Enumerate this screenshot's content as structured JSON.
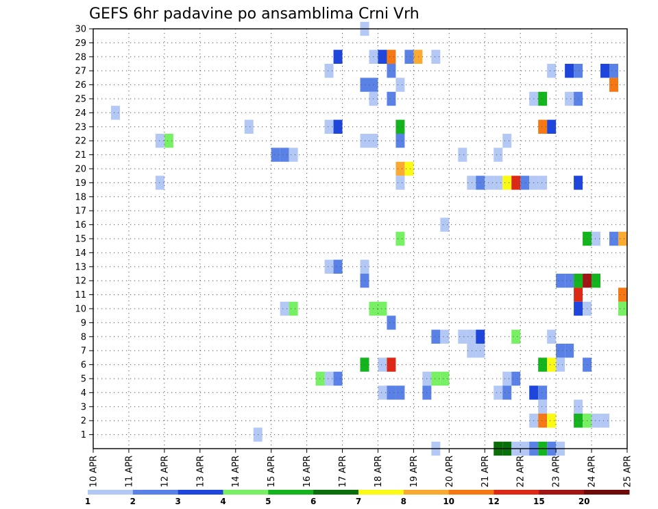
{
  "chart_data": {
    "type": "heatmap",
    "title": "GEFS 6hr padavine po ansamblima Crni Vrh",
    "xlabel": "",
    "ylabel": "",
    "x_tick_labels": [
      "10 APR",
      "11 APR",
      "12 APR",
      "13 APR",
      "14 APR",
      "15 APR",
      "16 APR",
      "17 APR",
      "18 APR",
      "19 APR",
      "20 APR",
      "21 APR",
      "22 APR",
      "23 APR",
      "24 APR",
      "25 APR"
    ],
    "y_tick_labels": [
      "1",
      "2",
      "3",
      "4",
      "5",
      "6",
      "7",
      "8",
      "9",
      "10",
      "11",
      "12",
      "13",
      "14",
      "15",
      "16",
      "17",
      "18",
      "19",
      "20",
      "21",
      "22",
      "23",
      "24",
      "25",
      "26",
      "27",
      "28",
      "29",
      "30"
    ],
    "xlim": [
      0,
      60
    ],
    "ylim": [
      0,
      30
    ],
    "x_unit": "6-hour step from 10 APR 00Z",
    "grid": true,
    "colorbar": {
      "labels": [
        "1",
        "2",
        "3",
        "4",
        "5",
        "6",
        "7",
        "8",
        "10",
        "12",
        "15",
        "20"
      ],
      "colors": [
        "#b4c8f5",
        "#5a82e6",
        "#1e46dc",
        "#78f064",
        "#14b41e",
        "#0a6e0a",
        "#fafa14",
        "#faaa32",
        "#f57814",
        "#dc2814",
        "#a01414",
        "#6e0a0a"
      ]
    },
    "cells": [
      {
        "x": 30.5,
        "y": 30,
        "v": 1
      },
      {
        "x": 27.5,
        "y": 28,
        "v": 3
      },
      {
        "x": 31.5,
        "y": 28,
        "v": 1
      },
      {
        "x": 32.5,
        "y": 28,
        "v": 3
      },
      {
        "x": 33.5,
        "y": 28,
        "v": 9
      },
      {
        "x": 35.5,
        "y": 28,
        "v": 2
      },
      {
        "x": 36.5,
        "y": 28,
        "v": 8
      },
      {
        "x": 38.5,
        "y": 28,
        "v": 1
      },
      {
        "x": 26.5,
        "y": 27,
        "v": 1
      },
      {
        "x": 33.5,
        "y": 27,
        "v": 2
      },
      {
        "x": 51.5,
        "y": 27,
        "v": 1
      },
      {
        "x": 53.5,
        "y": 27,
        "v": 3
      },
      {
        "x": 54.5,
        "y": 27,
        "v": 2
      },
      {
        "x": 57.5,
        "y": 27,
        "v": 3
      },
      {
        "x": 58.5,
        "y": 27,
        "v": 2
      },
      {
        "x": 30.5,
        "y": 26,
        "v": 2
      },
      {
        "x": 31.5,
        "y": 26,
        "v": 2
      },
      {
        "x": 34.5,
        "y": 26,
        "v": 1
      },
      {
        "x": 58.5,
        "y": 26,
        "v": 9
      },
      {
        "x": 31.5,
        "y": 25,
        "v": 1
      },
      {
        "x": 33.5,
        "y": 25,
        "v": 2
      },
      {
        "x": 49.5,
        "y": 25,
        "v": 1
      },
      {
        "x": 50.5,
        "y": 25,
        "v": 5
      },
      {
        "x": 53.5,
        "y": 25,
        "v": 1
      },
      {
        "x": 54.5,
        "y": 25,
        "v": 2
      },
      {
        "x": 2.5,
        "y": 24,
        "v": 1
      },
      {
        "x": 17.5,
        "y": 23,
        "v": 1
      },
      {
        "x": 26.5,
        "y": 23,
        "v": 1
      },
      {
        "x": 27.5,
        "y": 23,
        "v": 3
      },
      {
        "x": 34.5,
        "y": 23,
        "v": 5
      },
      {
        "x": 50.5,
        "y": 23,
        "v": 9
      },
      {
        "x": 51.5,
        "y": 23,
        "v": 3
      },
      {
        "x": 7.5,
        "y": 22,
        "v": 1
      },
      {
        "x": 8.5,
        "y": 22,
        "v": 4
      },
      {
        "x": 30.5,
        "y": 22,
        "v": 1
      },
      {
        "x": 31.5,
        "y": 22,
        "v": 1
      },
      {
        "x": 34.5,
        "y": 22,
        "v": 2
      },
      {
        "x": 46.5,
        "y": 22,
        "v": 1
      },
      {
        "x": 20.5,
        "y": 21,
        "v": 2
      },
      {
        "x": 21.5,
        "y": 21,
        "v": 2
      },
      {
        "x": 22.5,
        "y": 21,
        "v": 1
      },
      {
        "x": 41.5,
        "y": 21,
        "v": 1
      },
      {
        "x": 45.5,
        "y": 21,
        "v": 1
      },
      {
        "x": 34.5,
        "y": 20,
        "v": 8
      },
      {
        "x": 35.5,
        "y": 20,
        "v": 7
      },
      {
        "x": 7.5,
        "y": 19,
        "v": 1
      },
      {
        "x": 34.5,
        "y": 19,
        "v": 1
      },
      {
        "x": 42.5,
        "y": 19,
        "v": 1
      },
      {
        "x": 43.5,
        "y": 19,
        "v": 2
      },
      {
        "x": 44.5,
        "y": 19,
        "v": 1
      },
      {
        "x": 45.5,
        "y": 19,
        "v": 1
      },
      {
        "x": 46.5,
        "y": 19,
        "v": 7
      },
      {
        "x": 47.5,
        "y": 19,
        "v": 10
      },
      {
        "x": 48.5,
        "y": 19,
        "v": 2
      },
      {
        "x": 49.5,
        "y": 19,
        "v": 1
      },
      {
        "x": 50.5,
        "y": 19,
        "v": 1
      },
      {
        "x": 54.5,
        "y": 19,
        "v": 3
      },
      {
        "x": 39.5,
        "y": 16,
        "v": 1
      },
      {
        "x": 34.5,
        "y": 15,
        "v": 4
      },
      {
        "x": 55.5,
        "y": 15,
        "v": 5
      },
      {
        "x": 56.5,
        "y": 15,
        "v": 1
      },
      {
        "x": 58.5,
        "y": 15,
        "v": 2
      },
      {
        "x": 59.5,
        "y": 15,
        "v": 8
      },
      {
        "x": 26.5,
        "y": 13,
        "v": 1
      },
      {
        "x": 27.5,
        "y": 13,
        "v": 2
      },
      {
        "x": 30.5,
        "y": 13,
        "v": 1
      },
      {
        "x": 30.5,
        "y": 12,
        "v": 2
      },
      {
        "x": 52.5,
        "y": 12,
        "v": 2
      },
      {
        "x": 53.5,
        "y": 12,
        "v": 2
      },
      {
        "x": 54.5,
        "y": 12,
        "v": 5
      },
      {
        "x": 55.5,
        "y": 12,
        "v": 11
      },
      {
        "x": 56.5,
        "y": 12,
        "v": 5
      },
      {
        "x": 54.5,
        "y": 11,
        "v": 10
      },
      {
        "x": 59.5,
        "y": 11,
        "v": 9
      },
      {
        "x": 21.5,
        "y": 10,
        "v": 1
      },
      {
        "x": 22.5,
        "y": 10,
        "v": 4
      },
      {
        "x": 31.5,
        "y": 10,
        "v": 4
      },
      {
        "x": 32.5,
        "y": 10,
        "v": 4
      },
      {
        "x": 54.5,
        "y": 10,
        "v": 3
      },
      {
        "x": 55.5,
        "y": 10,
        "v": 1
      },
      {
        "x": 59.5,
        "y": 10,
        "v": 4
      },
      {
        "x": 33.5,
        "y": 9,
        "v": 2
      },
      {
        "x": 38.5,
        "y": 8,
        "v": 2
      },
      {
        "x": 39.5,
        "y": 8,
        "v": 1
      },
      {
        "x": 41.5,
        "y": 8,
        "v": 1
      },
      {
        "x": 42.5,
        "y": 8,
        "v": 1
      },
      {
        "x": 43.5,
        "y": 8,
        "v": 3
      },
      {
        "x": 47.5,
        "y": 8,
        "v": 4
      },
      {
        "x": 51.5,
        "y": 8,
        "v": 1
      },
      {
        "x": 42.5,
        "y": 7,
        "v": 1
      },
      {
        "x": 43.5,
        "y": 7,
        "v": 1
      },
      {
        "x": 52.5,
        "y": 7,
        "v": 2
      },
      {
        "x": 53.5,
        "y": 7,
        "v": 2
      },
      {
        "x": 30.5,
        "y": 6,
        "v": 5
      },
      {
        "x": 32.5,
        "y": 6,
        "v": 1
      },
      {
        "x": 33.5,
        "y": 6,
        "v": 10
      },
      {
        "x": 50.5,
        "y": 6,
        "v": 5
      },
      {
        "x": 51.5,
        "y": 6,
        "v": 7
      },
      {
        "x": 52.5,
        "y": 6,
        "v": 1
      },
      {
        "x": 55.5,
        "y": 6,
        "v": 2
      },
      {
        "x": 25.5,
        "y": 5,
        "v": 4
      },
      {
        "x": 26.5,
        "y": 5,
        "v": 1
      },
      {
        "x": 27.5,
        "y": 5,
        "v": 2
      },
      {
        "x": 37.5,
        "y": 5,
        "v": 1
      },
      {
        "x": 38.5,
        "y": 5,
        "v": 4
      },
      {
        "x": 39.5,
        "y": 5,
        "v": 4
      },
      {
        "x": 46.5,
        "y": 5,
        "v": 1
      },
      {
        "x": 47.5,
        "y": 5,
        "v": 2
      },
      {
        "x": 32.5,
        "y": 4,
        "v": 1
      },
      {
        "x": 33.5,
        "y": 4,
        "v": 2
      },
      {
        "x": 34.5,
        "y": 4,
        "v": 2
      },
      {
        "x": 37.5,
        "y": 4,
        "v": 2
      },
      {
        "x": 45.5,
        "y": 4,
        "v": 1
      },
      {
        "x": 46.5,
        "y": 4,
        "v": 2
      },
      {
        "x": 49.5,
        "y": 4,
        "v": 3
      },
      {
        "x": 50.5,
        "y": 4,
        "v": 2
      },
      {
        "x": 50.5,
        "y": 3,
        "v": 1
      },
      {
        "x": 54.5,
        "y": 3,
        "v": 1
      },
      {
        "x": 49.5,
        "y": 2,
        "v": 1
      },
      {
        "x": 50.5,
        "y": 2,
        "v": 9
      },
      {
        "x": 51.5,
        "y": 2,
        "v": 7
      },
      {
        "x": 54.5,
        "y": 2,
        "v": 5
      },
      {
        "x": 55.5,
        "y": 2,
        "v": 4
      },
      {
        "x": 56.5,
        "y": 2,
        "v": 1
      },
      {
        "x": 57.5,
        "y": 2,
        "v": 1
      },
      {
        "x": 18.5,
        "y": 1,
        "v": 1
      },
      {
        "x": 38.5,
        "y": 0,
        "v": 1
      },
      {
        "x": 45.5,
        "y": 0,
        "v": 6
      },
      {
        "x": 46.5,
        "y": 0,
        "v": 6
      },
      {
        "x": 47.5,
        "y": 0,
        "v": 1
      },
      {
        "x": 48.5,
        "y": 0,
        "v": 1
      },
      {
        "x": 49.5,
        "y": 0,
        "v": 2
      },
      {
        "x": 50.5,
        "y": 0,
        "v": 5
      },
      {
        "x": 51.5,
        "y": 0,
        "v": 2
      },
      {
        "x": 52.5,
        "y": 0,
        "v": 1
      }
    ]
  }
}
